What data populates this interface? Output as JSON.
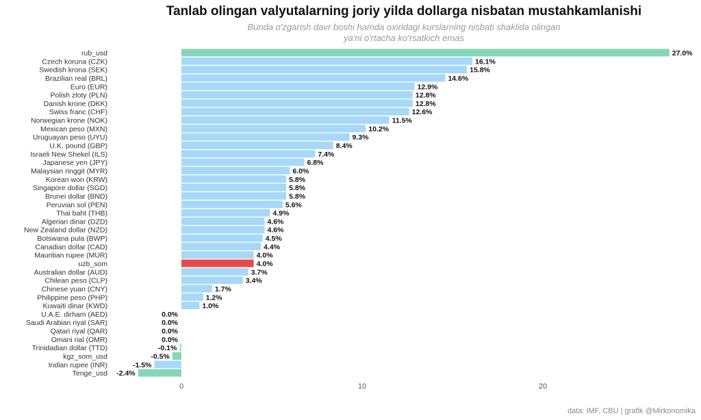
{
  "chart_data": {
    "type": "bar",
    "orientation": "horizontal",
    "title": "Tanlab olingan valyutalarning joriy yilda dollarga nisbatan mustahkamlanishi",
    "subtitle_line1": "Bunda o'zgarish davr boshi hamda oxiridagi  kurslarning nisbati shaklida olingan",
    "subtitle_line2": "ya'ni o'rtacha ko'rsatkich emas",
    "caption": "data: IMF, CBU | grafik @Mirkonomika",
    "xlim": [
      -2.4,
      27
    ],
    "xticks": [
      0,
      10,
      20
    ],
    "grid": false,
    "colors": {
      "default": "#a7d8f8",
      "highlight_green": "#86d6b5",
      "highlight_red": "#e64a4b"
    },
    "categories": [
      "rub_usd",
      "Czech koruna (CZK)",
      "Swedish krona (SEK)",
      "Brazilian real (BRL)",
      "Euro (EUR)",
      "Polish zloty (PLN)",
      "Danish krone (DKK)",
      "Swiss franc (CHF)",
      "Norwegian krone (NOK)",
      "Mexican peso (MXN)",
      "Uruguayan peso (UYU)",
      "U.K. pound (GBP)",
      "Israeli New Shekel (ILS)",
      "Japanese yen (JPY)",
      "Malaysian ringgit (MYR)",
      "Korean won (KRW)",
      "Singapore dollar (SGD)",
      "Brunei dollar (BND)",
      "Peruvian sol (PEN)",
      "Thai baht (THB)",
      "Algerian dinar (DZD)",
      "New Zealand dollar (NZD)",
      "Botswana pula (BWP)",
      "Canadian dollar (CAD)",
      "Mauritian rupee (MUR)",
      "uzb_som",
      "Australian dollar (AUD)",
      "Chilean peso (CLP)",
      "Chinese yuan (CNY)",
      "Philippine peso (PHP)",
      "Kuwaiti dinar (KWD)",
      "U.A.E. dirham (AED)",
      "Saudi Arabian riyal (SAR)",
      "Qatari riyal (QAR)",
      "Omani rial (OMR)",
      "Trinidadian dollar (TTD)",
      "kgz_som_usd",
      "Indian rupee (INR)",
      "Tenge_usd"
    ],
    "values": [
      27.0,
      16.1,
      15.8,
      14.6,
      12.9,
      12.8,
      12.8,
      12.6,
      11.5,
      10.2,
      9.3,
      8.4,
      7.4,
      6.8,
      6.0,
      5.8,
      5.8,
      5.8,
      5.6,
      4.9,
      4.6,
      4.6,
      4.5,
      4.4,
      4.0,
      4.0,
      3.7,
      3.4,
      1.7,
      1.2,
      1.0,
      0.0,
      0.0,
      0.0,
      0.0,
      -0.1,
      -0.5,
      -1.5,
      -2.4
    ],
    "labels": [
      "27.0%",
      "16.1%",
      "15.8%",
      "14.6%",
      "12.9%",
      "12.8%",
      "12.8%",
      "12.6%",
      "11.5%",
      "10.2%",
      "9.3%",
      "8.4%",
      "7.4%",
      "6.8%",
      "6.0%",
      "5.8%",
      "5.8%",
      "5.8%",
      "5.6%",
      "4.9%",
      "4.6%",
      "4.6%",
      "4.5%",
      "4.4%",
      "4.0%",
      "4.0%",
      "3.7%",
      "3.4%",
      "1.7%",
      "1.2%",
      "1.0%",
      "0.0%",
      "0.0%",
      "0.0%",
      "0.0%",
      "-0.1%",
      "-0.5%",
      "-1.5%",
      "-2.4%"
    ],
    "bar_colors": [
      "highlight_green",
      "default",
      "default",
      "default",
      "default",
      "default",
      "default",
      "default",
      "default",
      "default",
      "default",
      "default",
      "default",
      "default",
      "default",
      "default",
      "default",
      "default",
      "default",
      "default",
      "default",
      "default",
      "default",
      "default",
      "default",
      "highlight_red",
      "default",
      "default",
      "default",
      "default",
      "default",
      "default",
      "default",
      "default",
      "default",
      "default",
      "highlight_green",
      "default",
      "highlight_green"
    ]
  }
}
